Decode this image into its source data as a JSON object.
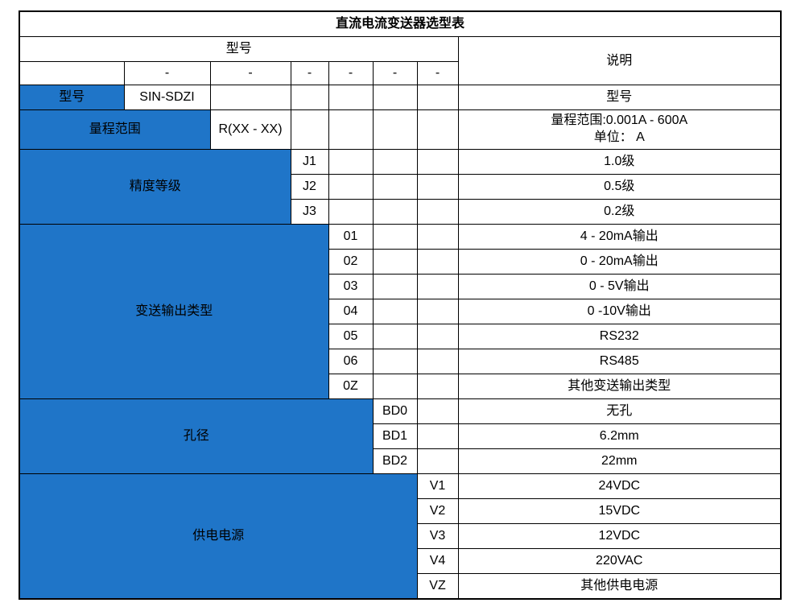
{
  "title": "直流电流变送器选型表",
  "header": {
    "model_label": "型号",
    "description_label": "说明"
  },
  "dash_cells": [
    "-",
    "-",
    "-",
    "-",
    "-",
    "-"
  ],
  "colors": {
    "accent_blue": "#1F75C8",
    "border_black": "#000000",
    "label_text_white": "#FFFFFF"
  },
  "sections": [
    {
      "key": "model",
      "label": "型号",
      "label_colspan": 1,
      "rows": [
        {
          "code": "SIN-SDZI",
          "desc": "型号"
        }
      ]
    },
    {
      "key": "range",
      "label": "量程范围",
      "label_colspan": 2,
      "rows": [
        {
          "code": "R(XX - XX)",
          "desc_lines": [
            "量程范围:0.001A - 600A",
            "单位： A"
          ],
          "tall": true
        }
      ]
    },
    {
      "key": "accuracy",
      "label": "精度等级",
      "label_colspan": 3,
      "rows": [
        {
          "code": "J1",
          "desc": "1.0级"
        },
        {
          "code": "J2",
          "desc": "0.5级"
        },
        {
          "code": "J3",
          "desc": "0.2级"
        }
      ]
    },
    {
      "key": "output-type",
      "label": "变送输出类型",
      "label_colspan": 4,
      "rows": [
        {
          "code": "01",
          "desc": "4 - 20mA输出"
        },
        {
          "code": "02",
          "desc": "0 - 20mA输出"
        },
        {
          "code": "03",
          "desc": "0 - 5V输出"
        },
        {
          "code": "04",
          "desc": "0 -10V输出"
        },
        {
          "code": "05",
          "desc": "RS232"
        },
        {
          "code": "06",
          "desc": "RS485"
        },
        {
          "code": "0Z",
          "desc": "其他变送输出类型"
        }
      ]
    },
    {
      "key": "aperture",
      "label": "孔径",
      "label_colspan": 5,
      "rows": [
        {
          "code": "BD0",
          "desc": "无孔"
        },
        {
          "code": "BD1",
          "desc": "6.2mm"
        },
        {
          "code": "BD2",
          "desc": "22mm"
        }
      ]
    },
    {
      "key": "power-supply",
      "label": "供电电源",
      "label_colspan": 6,
      "rows": [
        {
          "code": "V1",
          "desc": "24VDC"
        },
        {
          "code": "V2",
          "desc": "15VDC"
        },
        {
          "code": "V3",
          "desc": "12VDC"
        },
        {
          "code": "V4",
          "desc": "220VAC"
        },
        {
          "code": "VZ",
          "desc": "其他供电电源"
        }
      ]
    }
  ]
}
